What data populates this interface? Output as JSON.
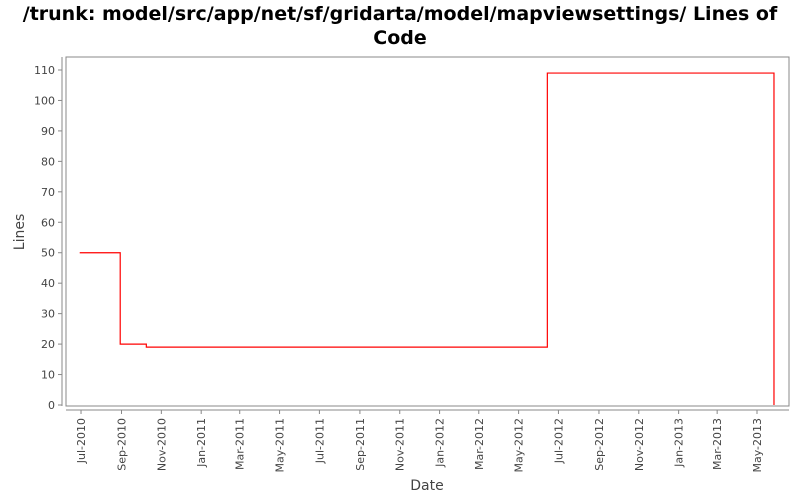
{
  "chart_data": {
    "type": "line",
    "step": true,
    "title": "/trunk: model/src/app/net/sf/gridarta/model/mapviewsettings/ Lines of Code",
    "xlabel": "Date",
    "ylabel": "Lines",
    "xlim": [
      "2010-06-08",
      "2013-06-19"
    ],
    "ylim": [
      0,
      115
    ],
    "yticks": [
      0,
      10,
      20,
      30,
      40,
      50,
      60,
      70,
      80,
      90,
      100,
      110
    ],
    "xticks": [
      {
        "date": "2010-07-01",
        "label": "Jul-2010"
      },
      {
        "date": "2010-09-01",
        "label": "Sep-2010"
      },
      {
        "date": "2010-11-01",
        "label": "Nov-2010"
      },
      {
        "date": "2011-01-01",
        "label": "Jan-2011"
      },
      {
        "date": "2011-03-01",
        "label": "Mar-2011"
      },
      {
        "date": "2011-05-01",
        "label": "May-2011"
      },
      {
        "date": "2011-07-01",
        "label": "Jul-2011"
      },
      {
        "date": "2011-09-01",
        "label": "Sep-2011"
      },
      {
        "date": "2011-11-01",
        "label": "Nov-2011"
      },
      {
        "date": "2012-01-01",
        "label": "Jan-2012"
      },
      {
        "date": "2012-03-01",
        "label": "Mar-2012"
      },
      {
        "date": "2012-05-01",
        "label": "May-2012"
      },
      {
        "date": "2012-07-01",
        "label": "Jul-2012"
      },
      {
        "date": "2012-09-01",
        "label": "Sep-2012"
      },
      {
        "date": "2012-11-01",
        "label": "Nov-2012"
      },
      {
        "date": "2013-01-01",
        "label": "Jan-2013"
      },
      {
        "date": "2013-03-01",
        "label": "Mar-2013"
      },
      {
        "date": "2013-05-01",
        "label": "May-2013"
      }
    ],
    "grid": false,
    "series": [
      {
        "color": "#ff0000",
        "points": [
          {
            "x": "2010-06-29",
            "y": 50
          },
          {
            "x": "2010-08-30",
            "y": 20
          },
          {
            "x": "2010-10-09",
            "y": 19
          },
          {
            "x": "2012-06-14",
            "y": 109
          },
          {
            "x": "2013-05-27",
            "y": 0
          }
        ]
      }
    ]
  }
}
